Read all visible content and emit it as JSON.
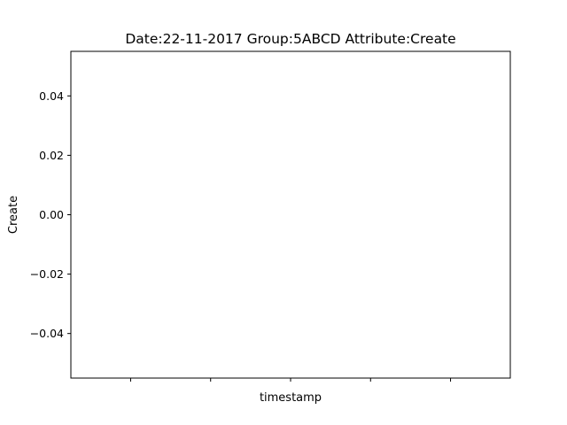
{
  "chart_data": {
    "type": "line",
    "title": "Date:22-11-2017  Group:5ABCD Attribute:Create",
    "xlabel": "timestamp",
    "ylabel": "Create",
    "x": [],
    "series": [
      {
        "values": []
      }
    ],
    "ylim": [
      -0.055,
      0.055
    ],
    "yticks": [
      0.04,
      0.02,
      0.0,
      -0.02,
      -0.04
    ],
    "ytick_labels": [
      "0.04",
      "0.02",
      "0.00",
      "−0.02",
      "−0.04"
    ],
    "xtick_count": 5,
    "xtick_labels": [
      "",
      "",
      "",
      "",
      ""
    ],
    "grid": false,
    "legend": "none"
  }
}
